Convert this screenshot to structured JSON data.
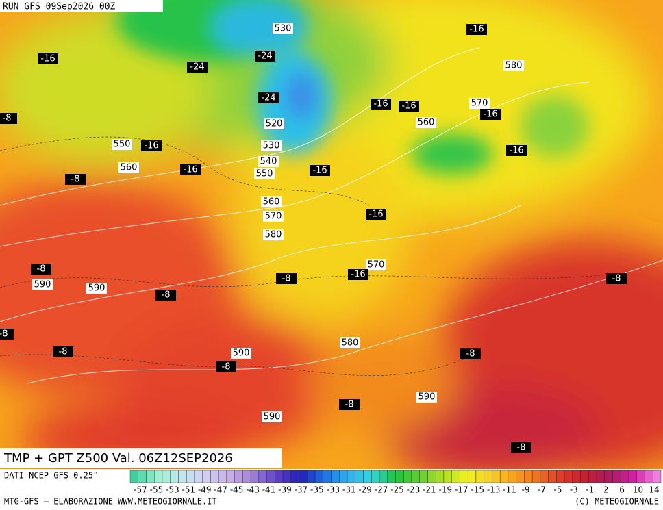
{
  "header": {
    "run": "RUN GFS 09Sep2026 00Z",
    "title": "TMP + GPT Z500 Val. 06Z12SEP2026"
  },
  "footer": {
    "source": "DATI NCEP GFS 0.25°",
    "credit": "MTG-GFS – ELABORAZIONE WWW.METEOGIORNALE.IT",
    "copyright": "(C) METEOGIORNALE"
  },
  "scale": {
    "labels": [
      "-57",
      "-55",
      "-53",
      "-51",
      "-49",
      "-47",
      "-45",
      "-43",
      "-41",
      "-39",
      "-37",
      "-35",
      "-33",
      "-31",
      "-29",
      "-27",
      "-25",
      "-23",
      "-21",
      "-19",
      "-17",
      "-15",
      "-13",
      "-11",
      "-9",
      "-7",
      "-5",
      "-3",
      "-1",
      "2",
      "6",
      "10",
      "14"
    ]
  },
  "height_labels": [
    "530",
    "520",
    "530",
    "540",
    "550",
    "550",
    "560",
    "560",
    "570",
    "580",
    "580",
    "570",
    "560",
    "570",
    "590",
    "590",
    "590",
    "580",
    "590",
    "590"
  ],
  "temp_labels": [
    "-16",
    "-16",
    "-24",
    "-24",
    "-24",
    "-16",
    "-16",
    "-16",
    "-8",
    "-16",
    "-16",
    "-16",
    "-16",
    "-8",
    "-16",
    "-8",
    "-16",
    "-8",
    "-8",
    "-8",
    "-8",
    "-8",
    "-8",
    "-8",
    "-8",
    "-8"
  ]
}
